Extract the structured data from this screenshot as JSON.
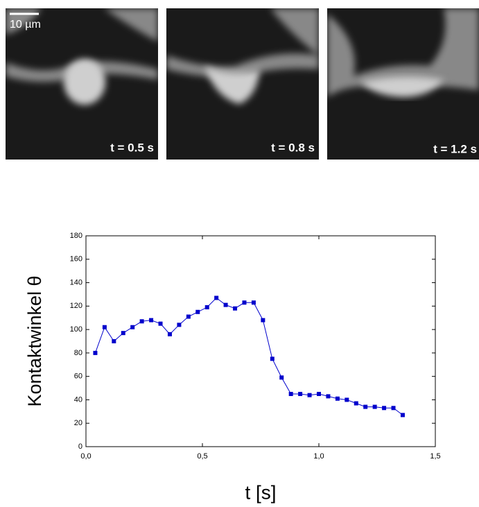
{
  "scale_bar": "10 µm",
  "panels": [
    {
      "label": "t = 0.5 s"
    },
    {
      "label": "t = 0.8 s"
    },
    {
      "label": "t = 1.2 s"
    }
  ],
  "chart_data": {
    "type": "line",
    "xlabel": "t [s]",
    "ylabel": "Kontaktwinkel  θ",
    "x": [
      0.04,
      0.08,
      0.12,
      0.16,
      0.2,
      0.24,
      0.28,
      0.32,
      0.36,
      0.4,
      0.44,
      0.48,
      0.52,
      0.56,
      0.6,
      0.64,
      0.68,
      0.72,
      0.76,
      0.8,
      0.84,
      0.88,
      0.92,
      0.96,
      1.0,
      1.04,
      1.08,
      1.12,
      1.16,
      1.2,
      1.24,
      1.28,
      1.32,
      1.36
    ],
    "series": [
      {
        "color": "#0000cc",
        "values": [
          80,
          102,
          90,
          97,
          102,
          107,
          108,
          105,
          96,
          104,
          111,
          115,
          119,
          127,
          121,
          118,
          123,
          123,
          108,
          75,
          59,
          45,
          45,
          44,
          45,
          43,
          41,
          40,
          37,
          34,
          34,
          33,
          33,
          27
        ]
      }
    ],
    "xlim": [
      0,
      1.5
    ],
    "ylim": [
      0,
      180
    ],
    "xticks": [
      {
        "value": 0,
        "label": "0,0"
      },
      {
        "value": 0.5,
        "label": "0,5"
      },
      {
        "value": 1.0,
        "label": "1,0"
      },
      {
        "value": 1.5,
        "label": "1,5"
      }
    ],
    "yticks": [
      0,
      20,
      40,
      60,
      80,
      100,
      120,
      140,
      160,
      180
    ]
  }
}
